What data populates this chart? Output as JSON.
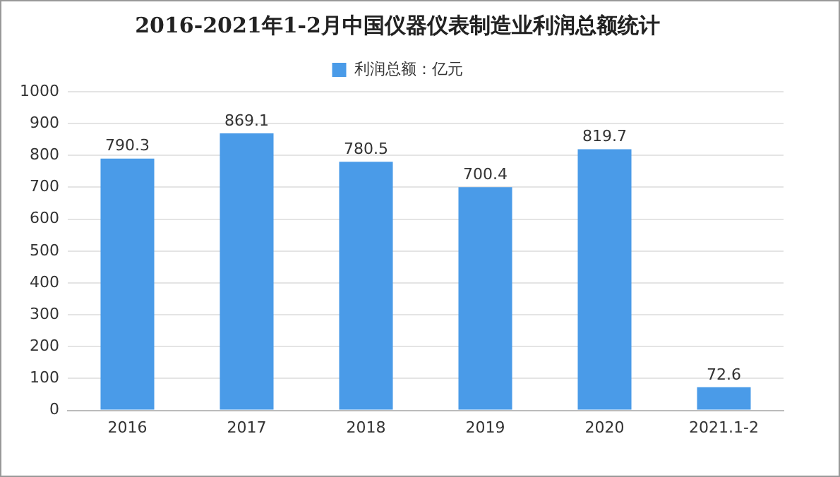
{
  "chart_data": {
    "type": "bar",
    "title": "2016-2021年1-2月中国仪器仪表制造业利润总额统计",
    "categories": [
      "2016",
      "2017",
      "2018",
      "2019",
      "2020",
      "2021.1-2"
    ],
    "series": [
      {
        "name": "利润总额：亿元",
        "color": "#4a9be8",
        "values": [
          790.3,
          869.1,
          780.5,
          700.4,
          819.7,
          72.6
        ]
      }
    ],
    "ylim": [
      0,
      1000
    ],
    "yticks": [
      0,
      100,
      200,
      300,
      400,
      500,
      600,
      700,
      800,
      900,
      1000
    ],
    "grid": "y",
    "legend": "top",
    "data_labels": true
  }
}
